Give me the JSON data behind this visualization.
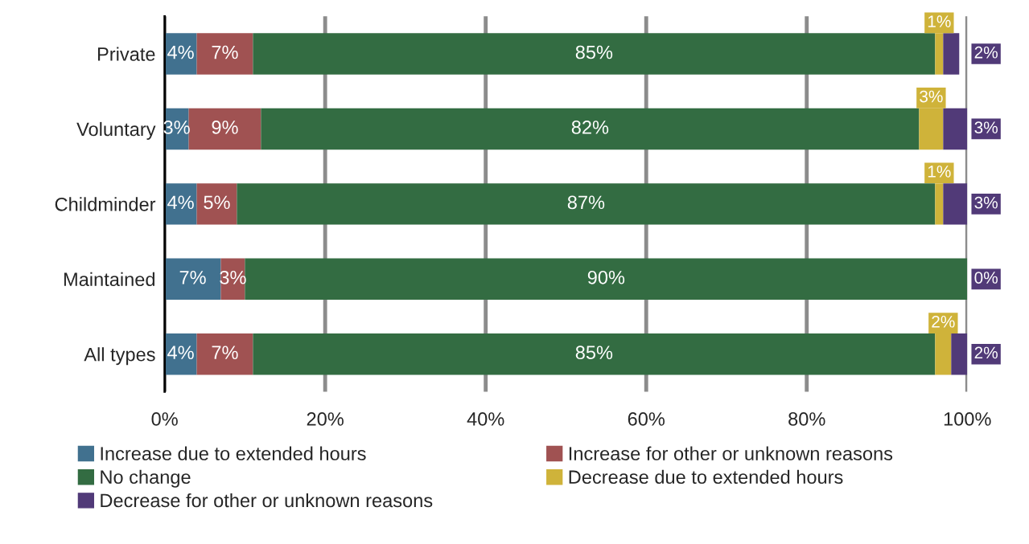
{
  "chart_data": {
    "type": "bar",
    "orientation": "horizontal",
    "stacked": true,
    "categories": [
      "Private",
      "Voluntary",
      "Childminder",
      "Maintained",
      "All types"
    ],
    "series": [
      {
        "name": "Increase due to extended hours",
        "color": "#41718f",
        "values": [
          4,
          3,
          4,
          7,
          4
        ],
        "value_labels": [
          "4%",
          "3%",
          "4%",
          "7%",
          "4%"
        ]
      },
      {
        "name": "Increase for other or unknown reasons",
        "color": "#a05252",
        "values": [
          7,
          9,
          5,
          3,
          7
        ],
        "value_labels": [
          "7%",
          "9%",
          "5%",
          "3%",
          "7%"
        ]
      },
      {
        "name": "No change",
        "color": "#336c42",
        "values": [
          85,
          82,
          87,
          90,
          85
        ],
        "value_labels": [
          "85%",
          "82%",
          "87%",
          "90%",
          "85%"
        ]
      },
      {
        "name": "Decrease due to extended hours",
        "color": "#cfb33a",
        "values": [
          1,
          3,
          1,
          0,
          2
        ],
        "value_labels": [
          "1%",
          "3%",
          "1%",
          null,
          "2%"
        ]
      },
      {
        "name": "Decrease for other or unknown reasons",
        "color": "#513a78",
        "values": [
          2,
          3,
          3,
          0,
          2
        ],
        "value_labels": [
          "2%",
          "3%",
          "3%",
          "0%",
          "2%"
        ]
      }
    ],
    "xlim": [
      0,
      100
    ],
    "xticks": [
      {
        "value": 0,
        "label": "0%"
      },
      {
        "value": 20,
        "label": "20%"
      },
      {
        "value": 40,
        "label": "40%"
      },
      {
        "value": 60,
        "label": "60%"
      },
      {
        "value": 80,
        "label": "80%"
      },
      {
        "value": 100,
        "label": "100%"
      }
    ],
    "grid": "x",
    "legend": "bottom"
  }
}
